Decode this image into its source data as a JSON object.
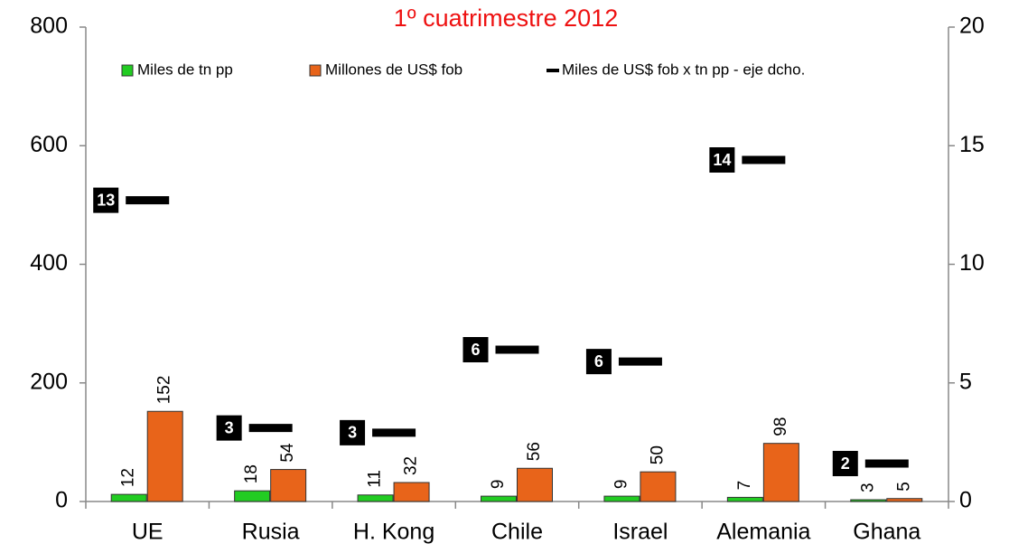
{
  "chart_data": {
    "type": "bar",
    "title": "1º cuatrimestre 2012",
    "categories": [
      "UE",
      "Rusia",
      "H. Kong",
      "Chile",
      "Israel",
      "Alemania",
      "Ghana"
    ],
    "series": [
      {
        "name": "Miles de tn pp",
        "color": "#22cc22",
        "values": [
          12,
          18,
          11,
          9,
          9,
          7,
          3
        ]
      },
      {
        "name": "Millones de US$ fob",
        "color": "#e8641a",
        "values": [
          152,
          54,
          32,
          56,
          50,
          98,
          5
        ]
      },
      {
        "name": "Miles de US$ fob x tn pp - eje dcho.",
        "color": "#000000",
        "axis": "y2",
        "marker": "dash",
        "values": [
          12.7,
          3.1,
          2.9,
          6.4,
          5.9,
          14.4,
          1.6
        ],
        "value_labels": [
          "13",
          "3",
          "3",
          "6",
          "6",
          "14",
          "2"
        ]
      }
    ],
    "ylim": [
      0,
      800
    ],
    "yticks": [
      0,
      200,
      400,
      600,
      800
    ],
    "y2lim": [
      0,
      20
    ],
    "y2ticks": [
      0,
      5,
      10,
      15,
      20
    ],
    "legend": "top",
    "grid": false
  }
}
